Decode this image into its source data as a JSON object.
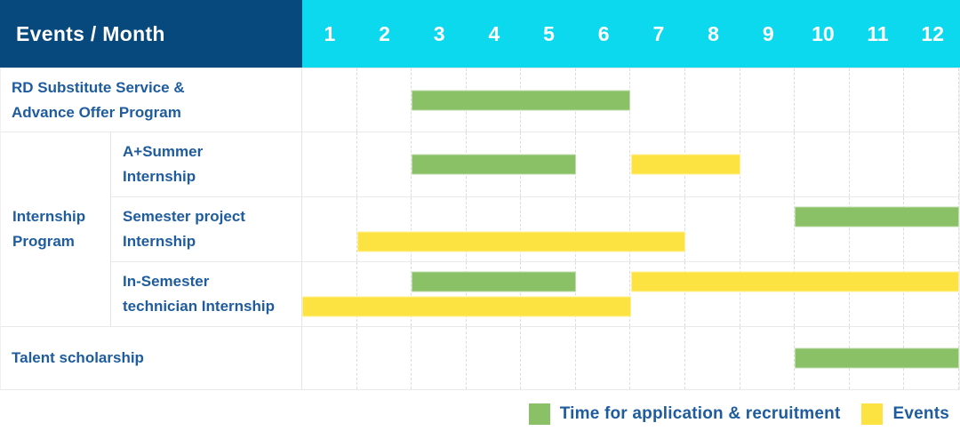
{
  "table": {
    "corner_title": "Events / Month",
    "months": [
      "1",
      "2",
      "3",
      "4",
      "5",
      "6",
      "7",
      "8",
      "9",
      "10",
      "11",
      "12"
    ],
    "row_labels": {
      "rd": {
        "line1": "RD Substitute Service &",
        "line2": "Advance Offer Program"
      },
      "group_internship": {
        "line1": "Internship",
        "line2": "Program"
      },
      "a_summer": {
        "line1": "A+Summer",
        "line2": "Internship"
      },
      "semester_project": {
        "line1": "Semester project",
        "line2": "Internship"
      },
      "in_semester": {
        "line1": "In-Semester",
        "line2": "technician Internship"
      },
      "talent": {
        "line1": "Talent scholarship"
      }
    }
  },
  "colors": {
    "header_bg": "#07497d",
    "months_bg": "#0cd8ee",
    "label_text": "#1e5c9e",
    "grid_dash": "#dcdcdc",
    "row_line": "#e9e9e9"
  },
  "chart_data": {
    "type": "bar",
    "subtype": "gantt-schedule",
    "title": "Events / Month",
    "x_axis": {
      "title": "Month",
      "ticks": [
        1,
        2,
        3,
        4,
        5,
        6,
        7,
        8,
        9,
        10,
        11,
        12
      ],
      "range_months": [
        1,
        12
      ],
      "grid": "dashed-vertical"
    },
    "legend_position": "bottom-right",
    "series_legend": [
      {
        "key": "application",
        "label": "Time for application & recruitment",
        "color": "#8ac166"
      },
      {
        "key": "events",
        "label": "Events",
        "color": "#fde342"
      }
    ],
    "rows": [
      {
        "label": "RD Substitute Service & Advance Offer Program",
        "group": null,
        "lanes": 1,
        "bars": [
          {
            "series": "application",
            "start_month": 3,
            "end_month": 6,
            "lane": 0
          }
        ]
      },
      {
        "label": "A+Summer Internship",
        "group": "Internship Program",
        "lanes": 1,
        "bars": [
          {
            "series": "application",
            "start_month": 3,
            "end_month": 5,
            "lane": 0
          },
          {
            "series": "events",
            "start_month": 7,
            "end_month": 8,
            "lane": 0
          }
        ]
      },
      {
        "label": "Semester project Internship",
        "group": "Internship Program",
        "lanes": 2,
        "bars": [
          {
            "series": "application",
            "start_month": 10,
            "end_month": 12,
            "lane": 0
          },
          {
            "series": "events",
            "start_month": 2,
            "end_month": 7,
            "lane": 1
          }
        ]
      },
      {
        "label": "In-Semester technician Internship",
        "group": "Internship Program",
        "lanes": 2,
        "bars": [
          {
            "series": "application",
            "start_month": 3,
            "end_month": 5,
            "lane": 0
          },
          {
            "series": "events",
            "start_month": 7,
            "end_month": 12,
            "lane": 0
          },
          {
            "series": "events",
            "start_month": 1,
            "end_month": 6,
            "lane": 1
          }
        ]
      },
      {
        "label": "Talent scholarship",
        "group": null,
        "lanes": 1,
        "bars": [
          {
            "series": "application",
            "start_month": 10,
            "end_month": 12,
            "lane": 0
          }
        ]
      }
    ]
  }
}
